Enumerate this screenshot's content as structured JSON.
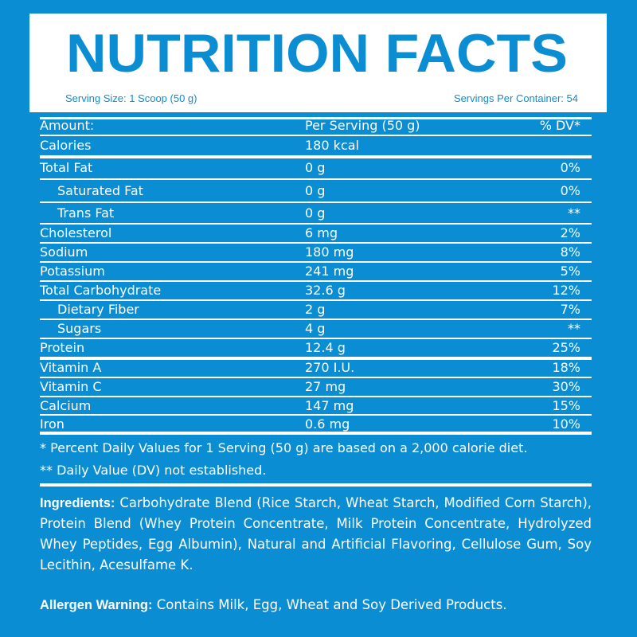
{
  "header": {
    "title": "NUTRITION FACTS",
    "serving_size": "Serving Size: 1 Scoop (50 g)",
    "servings_per_container": "Servings Per Container: 54"
  },
  "table": {
    "columns": [
      "Amount:",
      "Per Serving (50 g)",
      "% DV*"
    ],
    "rows": [
      {
        "nutrient": "Calories",
        "amount": "180 kcal",
        "rule": "thick"
      },
      {
        "nutrient": "Total Fat",
        "amount": "0 g",
        "dv": "0%"
      },
      {
        "nutrient": "Saturated Fat",
        "amount": "0 g",
        "dv": "0%",
        "indent": true
      },
      {
        "nutrient": "Trans Fat",
        "amount": "0 g",
        "dv": "**",
        "indent": true
      },
      {
        "nutrient": "Cholesterol",
        "amount": "6 mg",
        "dv": "2%"
      },
      {
        "nutrient": "Sodium",
        "amount": "180 mg",
        "dv": "8%"
      },
      {
        "nutrient": "Potassium",
        "amount": "241 mg",
        "dv": "5%"
      },
      {
        "nutrient": "Total Carbohydrate",
        "amount": "32.6 g",
        "dv": "12%"
      },
      {
        "nutrient": "Dietary Fiber",
        "amount": "2 g",
        "dv": "7%",
        "indent": true
      },
      {
        "nutrient": "Sugars",
        "amount": "4 g",
        "dv": "**",
        "indent": true
      },
      {
        "nutrient": "Protein",
        "amount": "12.4 g",
        "dv": "25%",
        "rule": "thick"
      },
      {
        "nutrient": "Vitamin A",
        "amount": "270 I.U.",
        "dv": "18%"
      },
      {
        "nutrient": "Vitamin C",
        "amount": "27 mg",
        "dv": "30%"
      },
      {
        "nutrient": "Calcium",
        "amount": "147 mg",
        "dv": "15%"
      },
      {
        "nutrient": "Iron",
        "amount": "0.6 mg",
        "dv": "10%",
        "rule": "thick"
      }
    ]
  },
  "footnotes": [
    "* Percent Daily Values for 1 Serving (50 g) are based on a 2,000 calorie diet.",
    "** Daily Value (DV) not established."
  ],
  "ingredients": {
    "label": "Ingredients:",
    "text": "Carbohydrate Blend (Rice Starch, Wheat Starch, Modified Corn Starch), Protein Blend (Whey Protein Concentrate, Milk Protein Concentrate, Hydrolyzed Whey Peptides, Egg Albumin), Natural and Artificial Flavoring, Cellulose Gum, Soy Lecithin, Acesulfame K."
  },
  "allergen": {
    "label": "Allergen Warning:",
    "text": "Contains Milk, Egg, Wheat and Soy Derived Products."
  }
}
